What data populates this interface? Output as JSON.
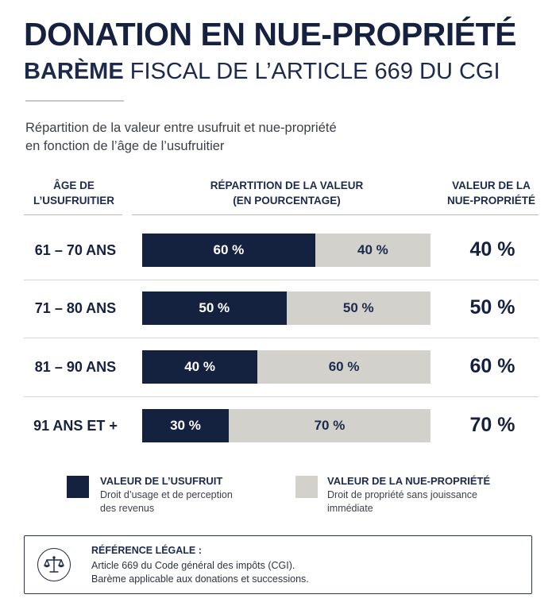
{
  "header": {
    "title": "DONATION EN NUE-PROPRIÉTÉ",
    "subtitle_bold": "BARÈME",
    "subtitle_rest": " FISCAL DE L’ARTICLE 669 DU CGI"
  },
  "intro": {
    "line1": "Répartition de la valeur entre usufruit et nue-propriété",
    "line2": "en fonction de l’âge de l’usufruitier"
  },
  "table": {
    "headers": {
      "age_line1": "ÂGE DE",
      "age_line2": "L’USUFRUITIER",
      "rep_line1": "RÉPARTITION DE LA VALEUR",
      "rep_line2": "(EN POURCENTAGE)",
      "val_line1": "VALEUR DE LA",
      "val_line2": "NUE-PROPRIÉTÉ"
    },
    "rows": [
      {
        "age": "61 – 70 ANS",
        "usufruit": 60,
        "usufruit_label": "60 %",
        "nue_label": "40 %",
        "value": "40 %"
      },
      {
        "age": "71 – 80 ANS",
        "usufruit": 50,
        "usufruit_label": "50 %",
        "nue_label": "50 %",
        "value": "50 %"
      },
      {
        "age": "81 – 90 ANS",
        "usufruit": 40,
        "usufruit_label": "40 %",
        "nue_label": "60 %",
        "value": "60 %"
      },
      {
        "age": "91 ANS ET +",
        "usufruit": 30,
        "usufruit_label": "30 %",
        "nue_label": "70 %",
        "value": "70 %"
      }
    ]
  },
  "legend": {
    "usufruit": {
      "title": "VALEUR DE L’USUFRUIT",
      "desc1": "Droit d’usage et de perception",
      "desc2": "des revenus",
      "color": "#14213f"
    },
    "nue": {
      "title": "VALEUR DE LA NUE-PROPRIÉTÉ",
      "desc1": "Droit de propriété sans jouissance",
      "desc2": "immédiate",
      "color": "#d3d1cb"
    }
  },
  "reference": {
    "icon": "scales-icon",
    "title": "RÉFÉRENCE LÉGALE :",
    "line1": "Article 669 du Code général des impôts (CGI).",
    "line2": "Barème applicable aux donations et successions."
  }
}
